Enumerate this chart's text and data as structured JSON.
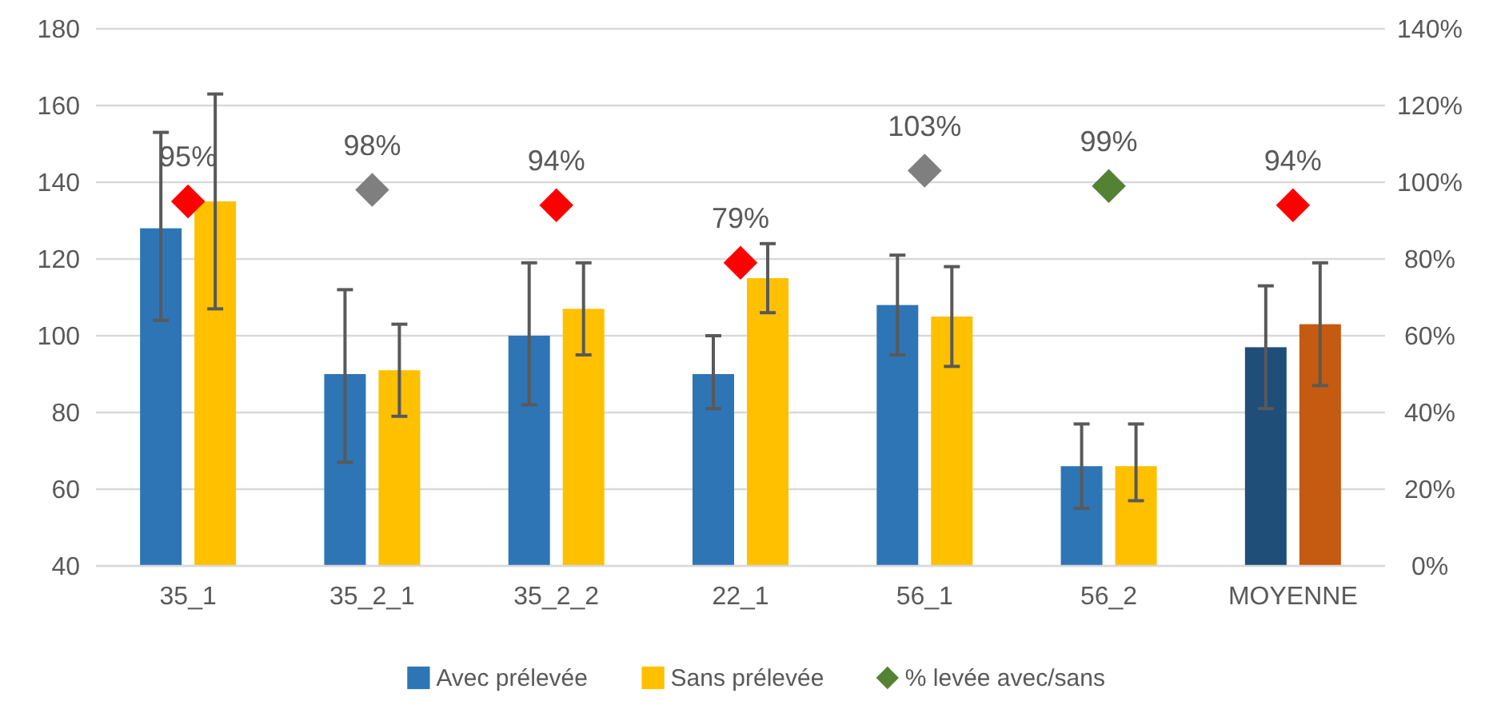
{
  "chart_data": {
    "type": "bar",
    "categories": [
      "35_1",
      "35_2_1",
      "35_2_2",
      "22_1",
      "56_1",
      "56_2",
      "MOYENNE"
    ],
    "ylim": [
      40,
      180
    ],
    "yticks": [
      40,
      60,
      80,
      100,
      120,
      140,
      160,
      180
    ],
    "y2lim": [
      0,
      140
    ],
    "y2ticks": [
      {
        "value": 0,
        "label": "0%"
      },
      {
        "value": 20,
        "label": "20%"
      },
      {
        "value": 40,
        "label": "40%"
      },
      {
        "value": 60,
        "label": "60%"
      },
      {
        "value": 80,
        "label": "80%"
      },
      {
        "value": 100,
        "label": "100%"
      },
      {
        "value": 120,
        "label": "120%"
      },
      {
        "value": 140,
        "label": "140%"
      }
    ],
    "grid": "y",
    "legend": "bottom",
    "series": [
      {
        "name": "Avec prélevée",
        "color": "#2e75b6",
        "colors": [
          "#2e75b6",
          "#2e75b6",
          "#2e75b6",
          "#2e75b6",
          "#2e75b6",
          "#2e75b6",
          "#1f4e79"
        ],
        "values": [
          128,
          90,
          100,
          90,
          108,
          66,
          97
        ],
        "errors": [
          [
            104,
            153
          ],
          [
            67,
            112
          ],
          [
            82,
            119
          ],
          [
            81,
            100
          ],
          [
            95,
            121
          ],
          [
            55,
            77
          ],
          [
            81,
            113
          ]
        ]
      },
      {
        "name": "Sans prélevée",
        "color": "#ffc000",
        "colors": [
          "#ffc000",
          "#ffc000",
          "#ffc000",
          "#ffc000",
          "#ffc000",
          "#ffc000",
          "#c55a11"
        ],
        "values": [
          135,
          91,
          107,
          115,
          105,
          66,
          103
        ],
        "errors": [
          [
            107,
            163
          ],
          [
            79,
            103
          ],
          [
            95,
            119
          ],
          [
            106,
            124
          ],
          [
            92,
            118
          ],
          [
            57,
            77
          ],
          [
            87,
            119
          ]
        ]
      },
      {
        "name": "% levée avec/sans",
        "type": "scatter",
        "axis": "y2",
        "marker": "diamond",
        "color": "#548235",
        "colors": [
          "#ff0000",
          "#7f7f7f",
          "#ff0000",
          "#ff0000",
          "#7f7f7f",
          "#548235",
          "#ff0000"
        ],
        "values": [
          95,
          98,
          94,
          79,
          103,
          99,
          94
        ],
        "value_labels": [
          "95%",
          "98%",
          "94%",
          "79%",
          "103%",
          "99%",
          "94%"
        ]
      }
    ]
  }
}
